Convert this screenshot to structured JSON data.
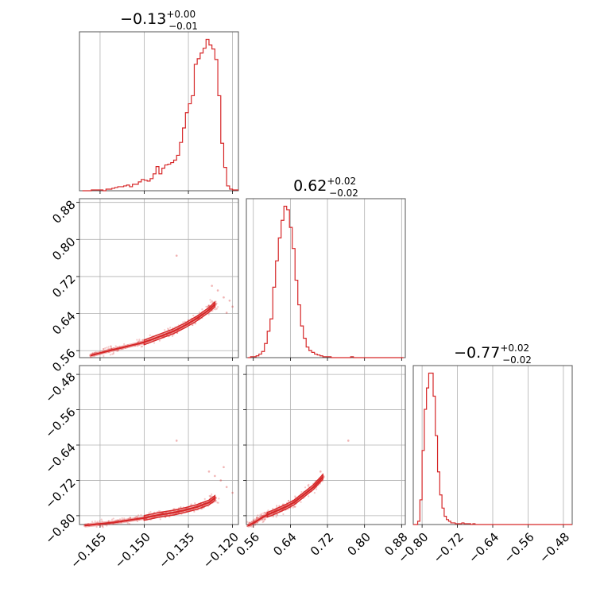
{
  "chart_data": {
    "type": "corner",
    "color": "#d62728",
    "grid": true,
    "parameters": [
      {
        "title_main": "−0.13",
        "title_sup": "+0.00",
        "title_sub": "−0.01",
        "range": [
          -0.172,
          -0.118
        ],
        "ticks": [
          -0.165,
          -0.15,
          -0.135,
          -0.12
        ],
        "tick_labels": [
          "−0.165",
          "−0.150",
          "−0.135",
          "−0.120"
        ],
        "hist_x": [
          -0.1705,
          -0.1695,
          -0.1685,
          -0.1675,
          -0.1665,
          -0.1655,
          -0.1645,
          -0.1635,
          -0.1625,
          -0.1615,
          -0.1605,
          -0.1595,
          -0.1585,
          -0.1575,
          -0.1565,
          -0.1555,
          -0.1545,
          -0.1535,
          -0.1525,
          -0.1515,
          -0.1505,
          -0.1495,
          -0.1485,
          -0.1475,
          -0.1465,
          -0.1455,
          -0.1445,
          -0.1435,
          -0.1425,
          -0.1415,
          -0.1405,
          -0.1395,
          -0.1385,
          -0.1375,
          -0.1365,
          -0.1355,
          -0.1345,
          -0.1335,
          -0.1325,
          -0.1315,
          -0.1305,
          -0.1295,
          -0.1285,
          -0.1275,
          -0.1265,
          -0.1255,
          -0.1245,
          -0.1235,
          -0.1225,
          -0.1215,
          -0.1205,
          -0.1195,
          -0.1185
        ],
        "hist_y": [
          0.0,
          0.0,
          0.0,
          0.5,
          0.5,
          0.5,
          0.5,
          0.0,
          1.0,
          1.0,
          1.5,
          2.0,
          2.5,
          2.5,
          3.0,
          3.5,
          2.5,
          4.0,
          4.0,
          5.5,
          7.0,
          6.5,
          6.0,
          7.5,
          10.5,
          15.0,
          10.5,
          14.0,
          16.0,
          16.5,
          17.5,
          19.0,
          22.0,
          30.0,
          39.0,
          48.5,
          54.0,
          59.0,
          78.5,
          82.0,
          85.5,
          88.5,
          94.0,
          90.5,
          88.0,
          81.5,
          59.0,
          29.5,
          14.5,
          3.0,
          1.0,
          0.5,
          0.5
        ]
      },
      {
        "title_main": "0.62",
        "title_sup": "+0.02",
        "title_sub": "−0.02",
        "range": [
          0.545,
          0.888
        ],
        "ticks": [
          0.56,
          0.64,
          0.72,
          0.8,
          0.88
        ],
        "tick_labels": [
          "0.56",
          "0.64",
          "0.72",
          "0.80",
          "0.88"
        ],
        "hist_x": [
          0.551,
          0.557,
          0.563,
          0.569,
          0.575,
          0.581,
          0.587,
          0.593,
          0.599,
          0.605,
          0.611,
          0.617,
          0.623,
          0.629,
          0.635,
          0.641,
          0.647,
          0.653,
          0.659,
          0.665,
          0.671,
          0.677,
          0.683,
          0.689,
          0.695,
          0.701,
          0.707,
          0.713,
          0.719,
          0.725,
          0.731,
          0.737,
          0.743,
          0.749,
          0.755,
          0.761,
          0.767,
          0.773,
          0.779,
          0.785,
          0.791,
          0.797,
          0.803,
          0.809,
          0.815,
          0.821,
          0.827,
          0.833,
          0.839,
          0.845,
          0.851,
          0.857,
          0.863,
          0.869,
          0.875,
          0.881
        ],
        "hist_y": [
          0.0,
          0.5,
          0.5,
          1.0,
          2.0,
          3.5,
          8.0,
          15.0,
          22.0,
          40.0,
          55.0,
          68.0,
          78.0,
          86.0,
          84.0,
          74.0,
          62.0,
          44.0,
          30.0,
          18.0,
          11.0,
          6.0,
          4.0,
          3.0,
          2.0,
          1.5,
          1.0,
          0.5,
          0.5,
          0.5,
          0.0,
          0.0,
          0.0,
          0.0,
          0.0,
          0.0,
          0.0,
          0.5,
          0.0,
          0.0,
          0.0,
          0.0,
          0.0,
          0.0,
          0.0,
          0.0,
          0.0,
          0.0,
          0.0,
          0.0,
          0.0,
          0.0,
          0.0,
          0.0,
          0.0,
          0.0
        ]
      },
      {
        "title_main": "−0.77",
        "title_sup": "+0.02",
        "title_sub": "−0.02",
        "range": [
          -0.82,
          -0.46
        ],
        "ticks": [
          -0.8,
          -0.72,
          -0.64,
          -0.56,
          -0.48
        ],
        "tick_labels": [
          "−0.80",
          "−0.72",
          "−0.64",
          "−0.56",
          "−0.48"
        ],
        "hist_x": [
          -0.8175,
          -0.8125,
          -0.8075,
          -0.8025,
          -0.7975,
          -0.7925,
          -0.7875,
          -0.7825,
          -0.7775,
          -0.7725,
          -0.7675,
          -0.7625,
          -0.7575,
          -0.7525,
          -0.7475,
          -0.7425,
          -0.7375,
          -0.7325,
          -0.7275,
          -0.7225,
          -0.7175,
          -0.7125,
          -0.7075,
          -0.7025,
          -0.6975,
          -0.6925,
          -0.6875,
          -0.6825,
          -0.6775,
          -0.6725,
          -0.6675,
          -0.6625,
          -0.6575,
          -0.6525,
          -0.6475,
          -0.6425,
          -0.6375,
          -0.6325,
          -0.6275,
          -0.6225,
          -0.6175,
          -0.6125,
          -0.6075,
          -0.6025,
          -0.5975,
          -0.5925,
          -0.5875,
          -0.5825,
          -0.5775,
          -0.5725,
          -0.5675,
          -0.5625,
          -0.5575,
          -0.5525,
          -0.5475,
          -0.5425,
          -0.5375,
          -0.5325,
          -0.5275,
          -0.5225,
          -0.5175,
          -0.5125,
          -0.5075,
          -0.5025,
          -0.4975,
          -0.4925,
          -0.4875,
          -0.4825,
          -0.4775,
          -0.4725,
          -0.4675,
          -0.4625
        ],
        "hist_y": [
          0.0,
          0.0,
          2.0,
          15.0,
          45.0,
          70.0,
          83.0,
          92.0,
          92.0,
          78.0,
          54.0,
          32.0,
          18.0,
          10.0,
          5.0,
          3.0,
          2.0,
          1.0,
          1.0,
          0.5,
          0.5,
          0.5,
          1.0,
          0.5,
          0.5,
          0.5,
          0.0,
          0.5,
          0.0,
          0.0,
          0.0,
          0.0,
          0.0,
          0.0,
          0.0,
          0.0,
          0.0,
          0.0,
          0.0,
          0.0,
          0.0,
          0.0,
          0.0,
          0.0,
          0.0,
          0.0,
          0.0,
          0.0,
          0.0,
          0.0,
          0.0,
          0.0,
          0.0,
          0.0,
          0.0,
          0.0,
          0.0,
          0.0,
          0.0,
          0.0,
          0.0,
          0.0,
          0.0,
          0.0,
          0.0,
          0.0,
          0.0,
          0.0,
          0.0,
          0.0,
          0.0,
          0.0
        ]
      }
    ],
    "pairs": [
      {
        "x_param": 0,
        "y_param": 1,
        "ridge": [
          [
            -0.168,
            0.55
          ],
          [
            -0.16,
            0.563
          ],
          [
            -0.15,
            0.578
          ],
          [
            -0.145,
            0.59
          ],
          [
            -0.14,
            0.602
          ],
          [
            -0.136,
            0.615
          ],
          [
            -0.132,
            0.63
          ],
          [
            -0.128,
            0.648
          ],
          [
            -0.126,
            0.66
          ]
        ],
        "outliers": [
          [
            -0.139,
            0.765
          ],
          [
            -0.127,
            0.7
          ],
          [
            -0.125,
            0.69
          ],
          [
            -0.123,
            0.675
          ],
          [
            -0.121,
            0.668
          ],
          [
            -0.12,
            0.655
          ],
          [
            -0.122,
            0.642
          ]
        ]
      },
      {
        "x_param": 0,
        "y_param": 2,
        "ridge": [
          [
            -0.17,
            -0.822
          ],
          [
            -0.16,
            -0.815
          ],
          [
            -0.15,
            -0.805
          ],
          [
            -0.145,
            -0.798
          ],
          [
            -0.14,
            -0.793
          ],
          [
            -0.136,
            -0.787
          ],
          [
            -0.132,
            -0.78
          ],
          [
            -0.128,
            -0.77
          ],
          [
            -0.126,
            -0.76
          ]
        ],
        "outliers": [
          [
            -0.139,
            -0.63
          ],
          [
            -0.128,
            -0.7
          ],
          [
            -0.126,
            -0.71
          ],
          [
            -0.124,
            -0.72
          ],
          [
            -0.122,
            -0.735
          ],
          [
            -0.12,
            -0.748
          ],
          [
            -0.123,
            -0.69
          ]
        ]
      },
      {
        "x_param": 1,
        "y_param": 2,
        "ridge": [
          [
            0.55,
            -0.822
          ],
          [
            0.563,
            -0.815
          ],
          [
            0.578,
            -0.805
          ],
          [
            0.59,
            -0.798
          ],
          [
            0.602,
            -0.793
          ],
          [
            0.615,
            -0.787
          ],
          [
            0.63,
            -0.78
          ],
          [
            0.648,
            -0.77
          ],
          [
            0.66,
            -0.76
          ],
          [
            0.69,
            -0.735
          ],
          [
            0.71,
            -0.712
          ]
        ],
        "outliers": [
          [
            0.765,
            -0.63
          ],
          [
            0.705,
            -0.7
          ],
          [
            0.69,
            -0.728
          ]
        ]
      }
    ]
  }
}
